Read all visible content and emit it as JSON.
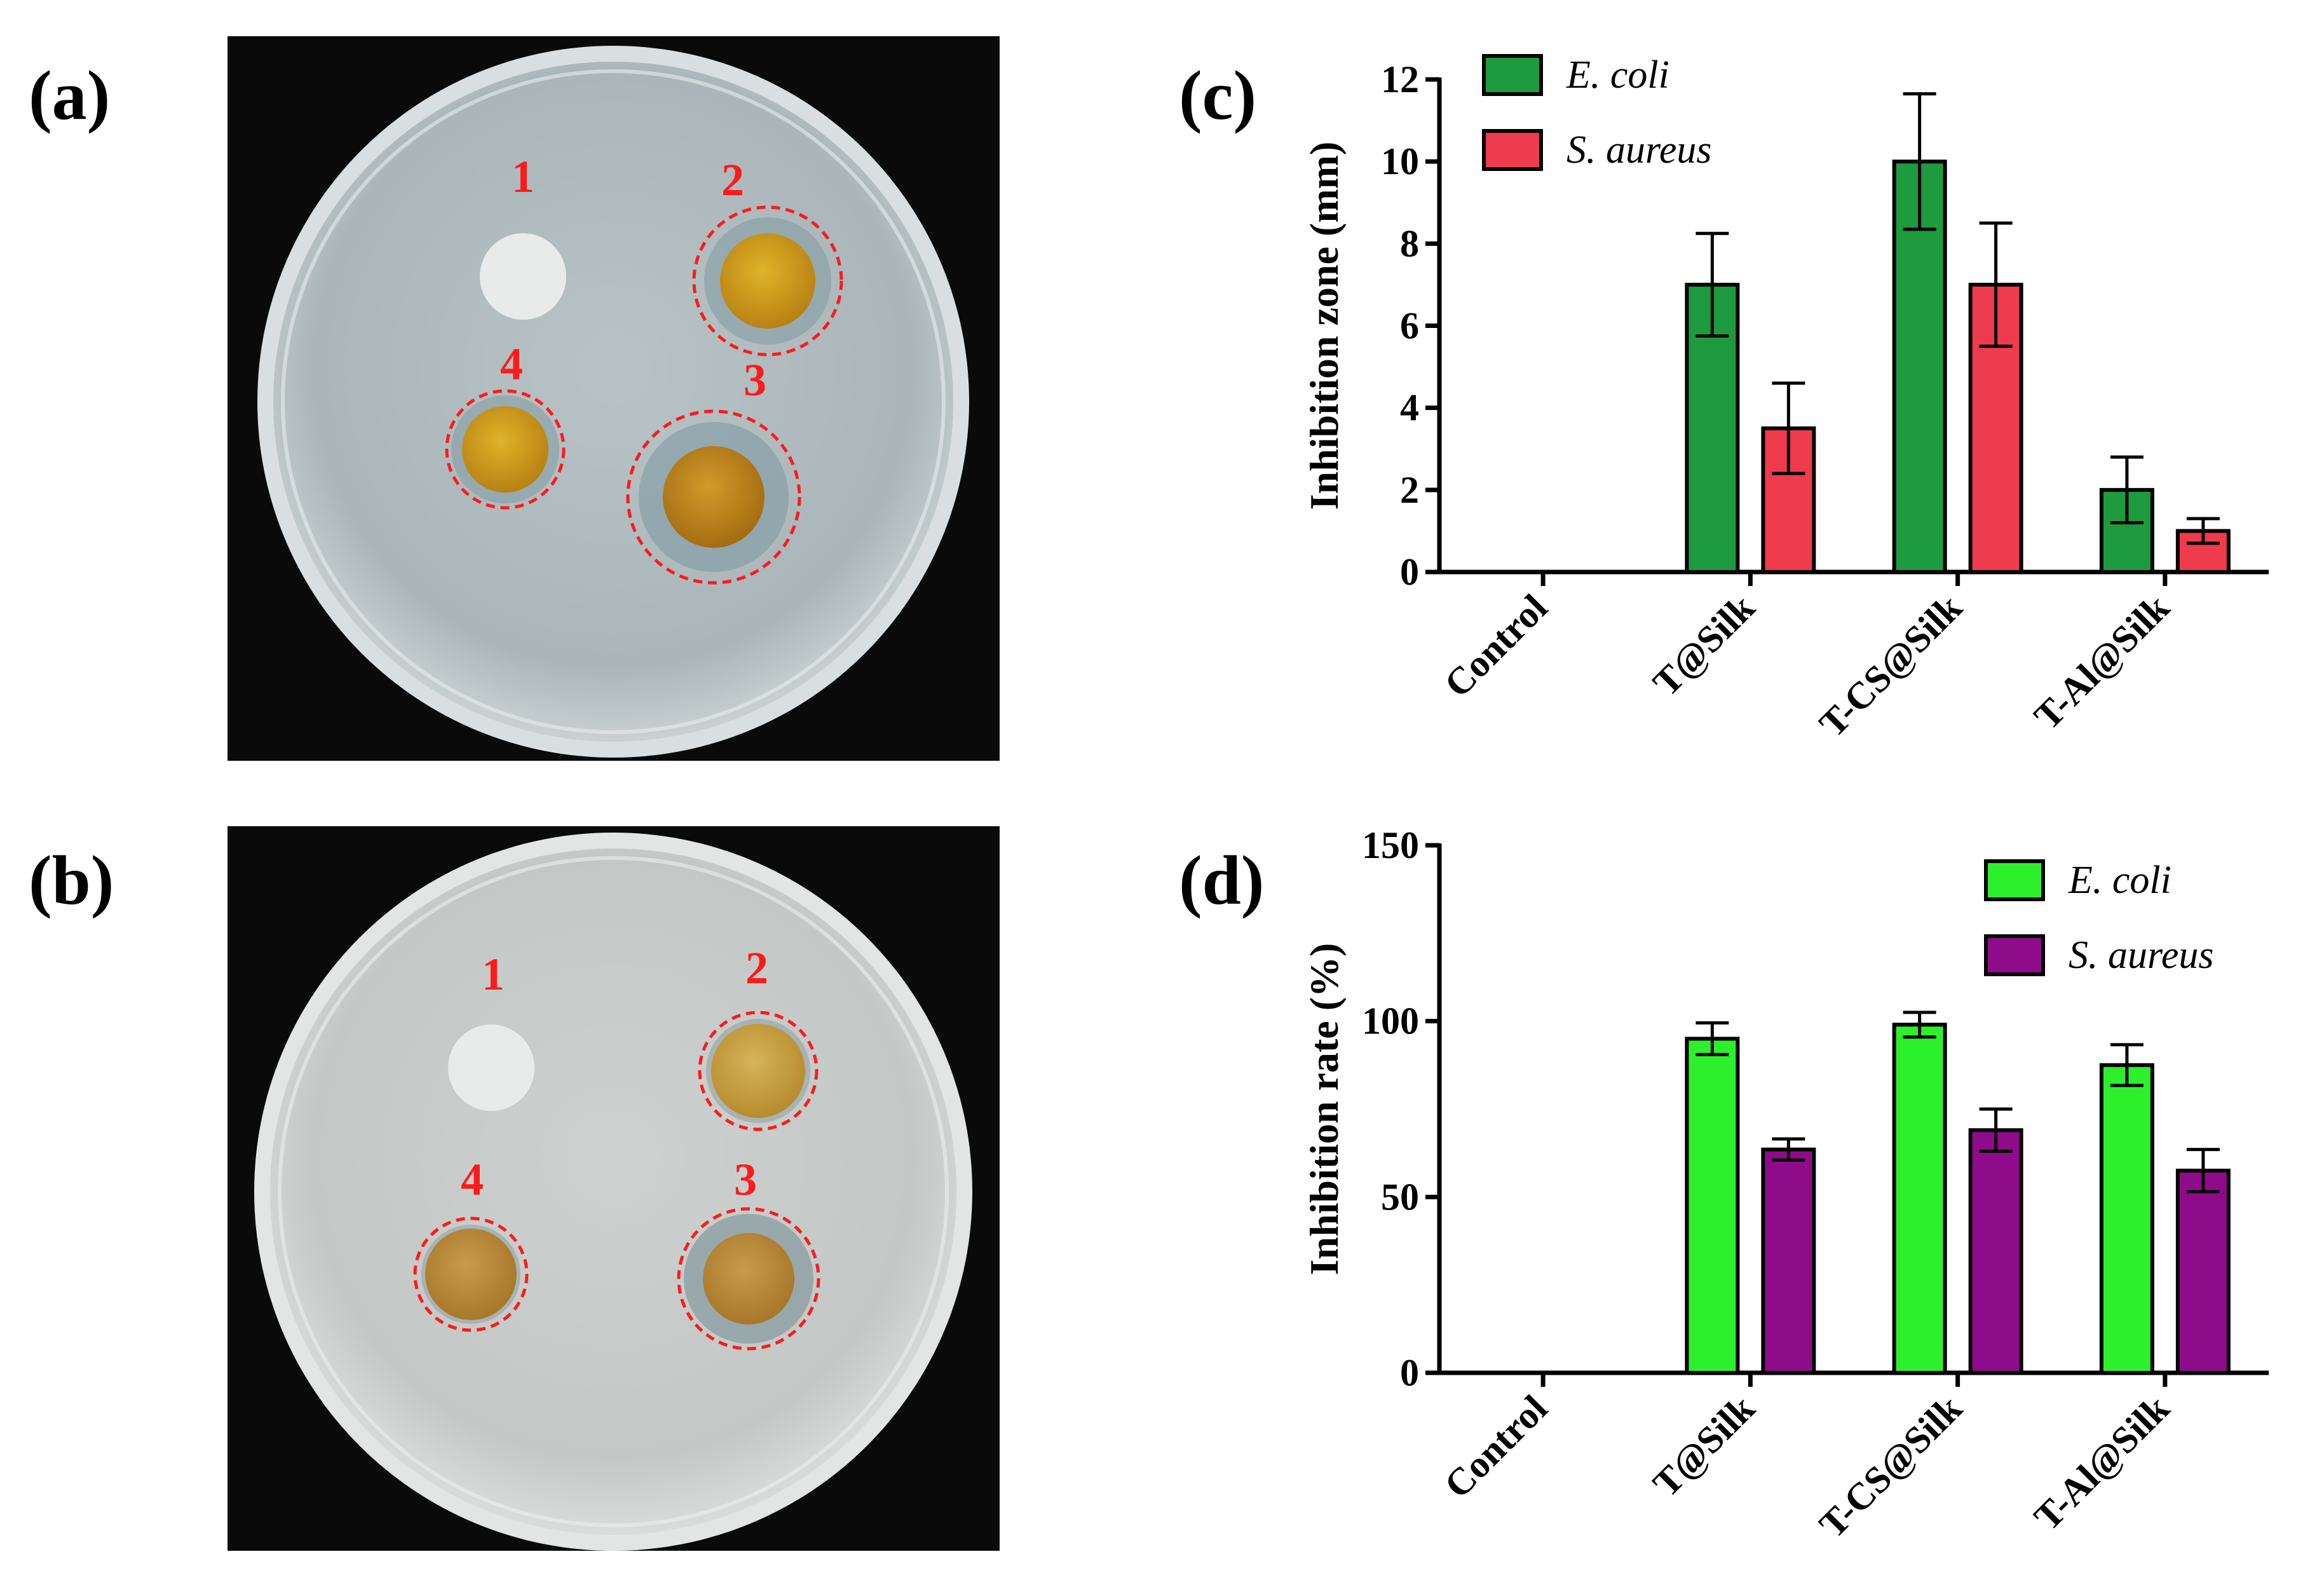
{
  "panels": {
    "a": "(a)",
    "b": "(b)",
    "c": "(c)",
    "d": "(d)"
  },
  "photos": {
    "a": {
      "labels": [
        "1",
        "2",
        "3",
        "4"
      ]
    },
    "b": {
      "labels": [
        "1",
        "2",
        "3",
        "4"
      ]
    }
  },
  "colors": {
    "photo_background": "#0a0a0a",
    "agar": "#b9c4c6",
    "dish_rim": "#dfe4e4",
    "dashed_circle": "#ff1a1a",
    "label_red": "#ff1a1a",
    "ecoli_c": "#1e9a3f",
    "saureus_c": "#ee3b4d",
    "ecoli_d": "#2df02d",
    "saureus_d": "#8e0c8a"
  },
  "chart_data": [
    {
      "type": "bar",
      "panel": "c",
      "categories": [
        "Control",
        "T@Silk",
        "T-CS@Silk",
        "T-Al@Silk"
      ],
      "series": [
        {
          "name": "E. coli",
          "values": [
            0,
            7,
            10,
            2
          ],
          "errors": [
            0,
            1.25,
            1.65,
            0.8
          ]
        },
        {
          "name": "S. aureus",
          "values": [
            0,
            3.5,
            7,
            1
          ],
          "errors": [
            0,
            1.1,
            1.5,
            0.3
          ]
        }
      ],
      "xlabel": "",
      "ylabel": "Inhibition zone (mm)",
      "ylim": [
        0,
        12
      ],
      "yticks": [
        0,
        2,
        4,
        6,
        8,
        10,
        12
      ],
      "grid": false,
      "legend_position": "top-left"
    },
    {
      "type": "bar",
      "panel": "d",
      "categories": [
        "Control",
        "T@Silk",
        "T-CS@Silk",
        "T-Al@Silk"
      ],
      "series": [
        {
          "name": "E. coli",
          "values": [
            0,
            95,
            99,
            87.5
          ],
          "errors": [
            0,
            4.5,
            3.5,
            5.8
          ]
        },
        {
          "name": "S. aureus",
          "values": [
            0,
            63.5,
            69,
            57.5
          ],
          "errors": [
            0,
            3,
            6,
            6
          ]
        }
      ],
      "xlabel": "",
      "ylabel": "Inhibition rate (%)",
      "ylim": [
        0,
        150
      ],
      "yticks": [
        0,
        50,
        100,
        150
      ],
      "grid": false,
      "legend_position": "top-right"
    }
  ]
}
